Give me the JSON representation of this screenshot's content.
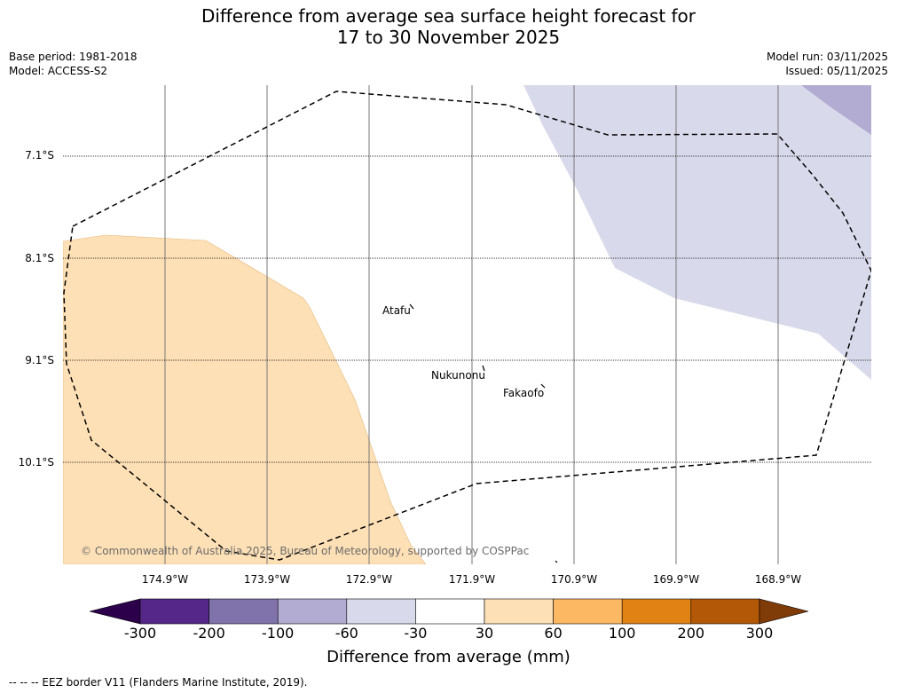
{
  "title": {
    "line1": "Difference from average sea surface height forecast for",
    "line2": "17 to 30 November 2025"
  },
  "meta": {
    "base_period": "Base period: 1981-2018",
    "model": "Model: ACCESS-S2",
    "model_run": "Model run: 03/11/2025",
    "issued": "Issued: 05/11/2025"
  },
  "map": {
    "lat_labels": [
      "7.1°S",
      "8.1°S",
      "9.1°S",
      "10.1°S"
    ],
    "lon_labels": [
      "174.9°W",
      "173.9°W",
      "172.9°W",
      "171.9°W",
      "170.9°W",
      "169.9°W",
      "168.9°W"
    ],
    "places": [
      {
        "name": "Atafu"
      },
      {
        "name": "Nukunonu"
      },
      {
        "name": "Fakaofo"
      }
    ],
    "copyright": "© Commonwealth of Australia 2025, Bureau of Meteorology, supported by COSPPac"
  },
  "colorbar": {
    "title": "Difference from average (mm)",
    "ticks": [
      "-300",
      "-200",
      "-100",
      "-60",
      "-30",
      "30",
      "60",
      "100",
      "200",
      "300"
    ],
    "colors": [
      "#2d004b",
      "#542788",
      "#8073ac",
      "#b2abd2",
      "#d8daeb",
      "#ffffff",
      "#fee0b6",
      "#fdb863",
      "#e08214",
      "#b35806",
      "#7f3b08"
    ]
  },
  "legend_note": "--  --  -- EEZ border V11 (Flanders Marine Institute, 2019)."
}
